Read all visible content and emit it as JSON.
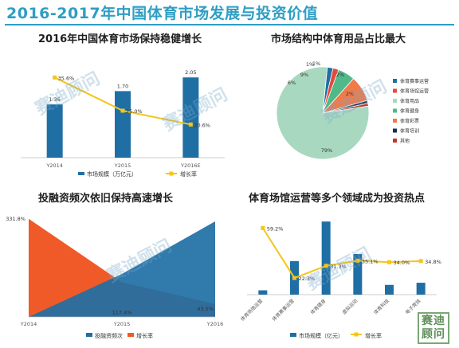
{
  "page_title": "2016-2017年中国体育市场发展与投资价值",
  "watermark": "赛迪顾问",
  "logo_text": "赛迪顾问",
  "colors": {
    "bar": "#1f6fa5",
    "line": "#f5c518",
    "area_a": "#1f6fa5",
    "area_b": "#f05a28"
  },
  "chart_data": [
    {
      "type": "bar",
      "title": "2016年中国体育市场保持稳健增长",
      "categories": [
        "Y2014",
        "Y2015",
        "Y2016E"
      ],
      "series": [
        {
          "name": "市场规模（万亿元）",
          "values": [
            1.36,
            1.7,
            2.05
          ],
          "labels": [
            "1.36",
            "1.70",
            "2.05"
          ]
        },
        {
          "name": "增长率",
          "values": [
            35.6,
            25.0,
            20.6
          ],
          "labels": [
            "35.6%",
            "25.0%",
            "20.6%"
          ]
        }
      ]
    },
    {
      "type": "pie",
      "title": "市场结构中体育用品占比最大",
      "labels": [
        "体育赛事运营",
        "体育场馆运营",
        "体育用品",
        "体育健身",
        "体育彩票",
        "体育培训",
        "其他"
      ],
      "values": [
        2,
        2,
        79,
        6,
        9,
        1,
        1
      ],
      "value_labels": [
        "2%",
        "2%",
        "79%",
        "6%",
        "9%",
        "1%",
        "1%"
      ],
      "colors": [
        "#1f6fa5",
        "#e24b3b",
        "#a8d9c0",
        "#4fb98a",
        "#f07a4a",
        "#1a2e4a",
        "#c0392b"
      ]
    },
    {
      "type": "area",
      "title": "投融资频次依旧保持高速增长",
      "categories": [
        "Y2014",
        "Y2015",
        "Y2016"
      ],
      "series": [
        {
          "name": "投融资频次",
          "values": [
            0,
            45,
            100
          ]
        },
        {
          "name": "增长率",
          "values": [
            331.8,
            117.4,
            43.5
          ],
          "labels": [
            "331.8%",
            "117.4%",
            "43.5%"
          ]
        }
      ]
    },
    {
      "type": "bar",
      "title": "体育场馆运营等多个领域成为投资热点",
      "categories": [
        "体育场馆运营",
        "体育赛事运营",
        "体育健身",
        "虚拟运动",
        "体育科技",
        "电子竞技"
      ],
      "series": [
        {
          "name": "市场规模（亿元）",
          "values": [
            8,
            62,
            135,
            75,
            18,
            22
          ]
        },
        {
          "name": "增长率",
          "values": [
            59.2,
            22.3,
            31.3,
            35.1,
            34.0,
            34.8
          ],
          "labels": [
            "59.2%",
            "22.3%",
            "31.3%",
            "35.1%",
            "34.0%",
            "34.8%"
          ]
        }
      ]
    }
  ]
}
